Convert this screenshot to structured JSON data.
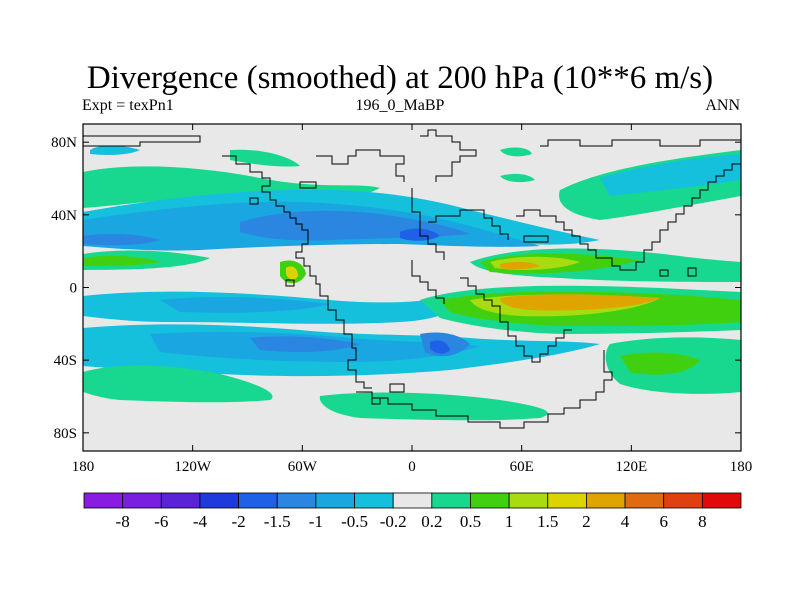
{
  "title": "Divergence (smoothed) at 200 hPa (10**6 m/s)",
  "subtitle_left": "Expt = texPn1",
  "subtitle_center": "196_0_MaBP",
  "subtitle_right": "ANN",
  "lat_ticks": [
    {
      "label": "80N",
      "lat": 80
    },
    {
      "label": "40N",
      "lat": 40
    },
    {
      "label": "0",
      "lat": 0
    },
    {
      "label": "40S",
      "lat": -40
    },
    {
      "label": "80S",
      "lat": -80
    }
  ],
  "lon_ticks": [
    {
      "label": "180",
      "lon": -180
    },
    {
      "label": "120W",
      "lon": -120
    },
    {
      "label": "60W",
      "lon": -60
    },
    {
      "label": "0",
      "lon": 0
    },
    {
      "label": "60E",
      "lon": 60
    },
    {
      "label": "120E",
      "lon": 120
    },
    {
      "label": "180",
      "lon": 180
    }
  ],
  "colorbar": {
    "colors": [
      "#8a1be0",
      "#7a1ee0",
      "#5a23d8",
      "#1e3adc",
      "#1e60e6",
      "#2a86e0",
      "#1aa6e0",
      "#14c0dc",
      "#e8e8e8",
      "#18d890",
      "#40d010",
      "#a8dc10",
      "#dcd400",
      "#e0a400",
      "#e06a10",
      "#e04010",
      "#e00a0a"
    ],
    "labels": [
      "-8",
      "-6",
      "-4",
      "-2",
      "-1.5",
      "-1",
      "-0.5",
      "-0.2",
      "0.2",
      "0.5",
      "1",
      "1.5",
      "2",
      "4",
      "6",
      "8"
    ]
  },
  "map_colors": {
    "background": "#e8e8e8",
    "green": "#18d890",
    "lightgreen": "#40d010",
    "yellowgreen": "#a8dc10",
    "yellow": "#dcd400",
    "orange": "#e0a400",
    "cyan": "#14c0dc",
    "lightblue": "#1aa6e0",
    "blue": "#2a86e0",
    "darkblue": "#1e60e6"
  }
}
